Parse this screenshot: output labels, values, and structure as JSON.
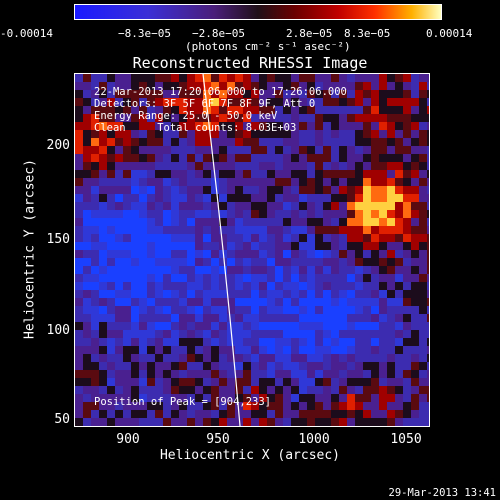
{
  "colorbar": {
    "ticks": [
      "-0.00014",
      "−8.3e−05",
      "−2.8e−05",
      "2.8e−05",
      "8.3e−05",
      "0.00014"
    ],
    "unit": "(photons cm⁻² s⁻¹ asec⁻²)"
  },
  "plot": {
    "title": "Reconstructed RHESSI Image",
    "xlabel": "Heliocentric X (arcsec)",
    "ylabel": "Heliocentric Y (arcsec)",
    "xticks": [
      "900",
      "950",
      "1000",
      "1050"
    ],
    "yticks": [
      "200",
      "150",
      "100",
      "50"
    ]
  },
  "info": {
    "line1": "22-Mar-2013 17:20:06.000 to 17:26:06.000",
    "line2": "Detectors: 3F 5F 6F 7F 8F 9F, Att 0",
    "line3": "Energy Range: 25.0 - 50.0 keV",
    "line4": "Clean     Total counts: 8.03E+03"
  },
  "peak_label": "Position of Peak = [904,233]",
  "datestamp": "29-Mar-2013 13:41"
}
